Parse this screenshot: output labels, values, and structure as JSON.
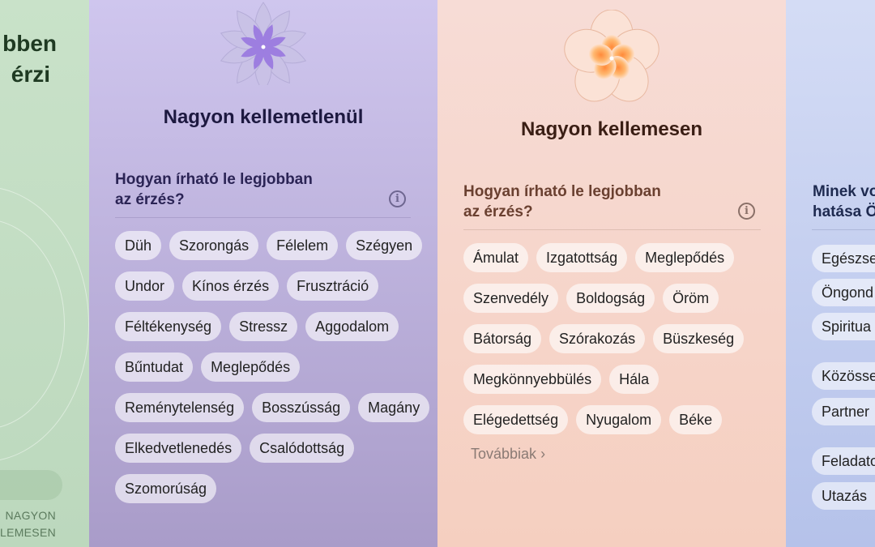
{
  "left_panel": {
    "title_lines": [
      "bben",
      "érzi"
    ],
    "scale_label_lines": [
      "NAGYON",
      "LEMESEN"
    ]
  },
  "unpleasant_panel": {
    "title": "Nagyon kellemetlenül",
    "question": [
      "Hogyan írható le legjobban",
      "az érzés?"
    ],
    "info_icon": "info-circle-icon",
    "chips": [
      "Düh",
      "Szorongás",
      "Félelem",
      "Szégyen",
      "Undor",
      "Kínos érzés",
      "Frusztráció",
      "Féltékenység",
      "Stressz",
      "Aggodalom",
      "Bűntudat",
      "Meglepődés",
      "Reménytelenség",
      "Bosszússág",
      "Magány",
      "Elkedvetlenedés",
      "Csalódottság",
      "Szomorúság"
    ]
  },
  "pleasant_panel": {
    "title": "Nagyon kellemesen",
    "question": [
      "Hogyan írható le legjobban",
      "az érzés?"
    ],
    "info_icon": "info-circle-icon",
    "chips": [
      "Ámulat",
      "Izgatottság",
      "Meglepődés",
      "Szenvedély",
      "Boldogság",
      "Öröm",
      "Bátorság",
      "Szórakozás",
      "Büszkeség",
      "Megkönnyebbülés",
      "Hála",
      "Elégedettség",
      "Nyugalom",
      "Béke"
    ],
    "more_label": "Továbbiak"
  },
  "right_panel": {
    "question": [
      "Minek vo",
      "hatása Ö"
    ],
    "chips": [
      "Egészse",
      "Öngond",
      "Spiritua",
      "Közösse",
      "Partner",
      "Feladato",
      "Utazás"
    ]
  },
  "colors": {
    "green": "#c9e2c9",
    "purple": "#cfc6ee",
    "peach": "#f7dcd6",
    "blue": "#d4dcf5"
  }
}
